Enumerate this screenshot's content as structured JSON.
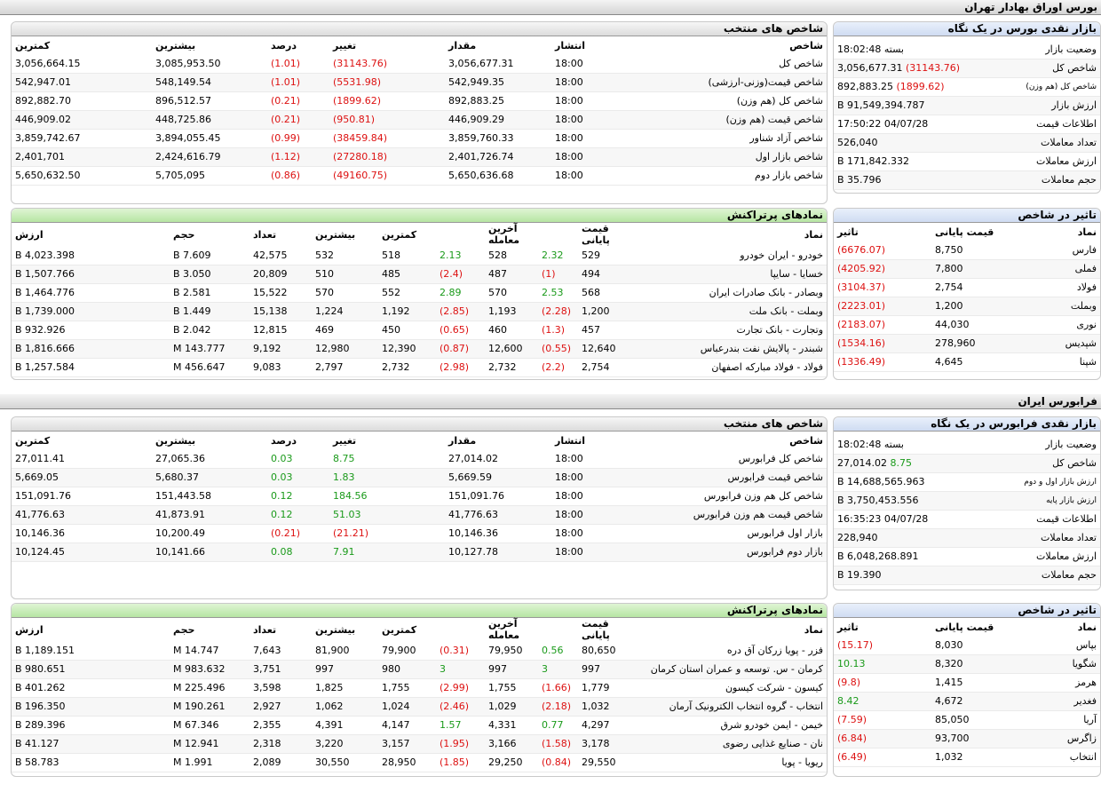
{
  "tse": {
    "title": "بورس اوراق بهادار تهران",
    "glance": {
      "title": "بازار نقدی بورس در یک نگاه",
      "rows": [
        {
          "label": "وضعیت بازار",
          "value": "بسته 18:02:48",
          "change": ""
        },
        {
          "label": "شاخص کل",
          "value": "3,056,677.31",
          "change": "(31143.76)"
        },
        {
          "label": "شاخص کل (هم وزن)",
          "value": "892,883.25",
          "change": "(1899.62)"
        },
        {
          "label": "ارزش بازار",
          "value": "91,549,394.787 B",
          "change": ""
        },
        {
          "label": "اطلاعات قیمت",
          "value": "04/07/28 17:50:22",
          "change": ""
        },
        {
          "label": "تعداد معاملات",
          "value": "526,040",
          "change": ""
        },
        {
          "label": "ارزش معاملات",
          "value": "171,842.332 B",
          "change": ""
        },
        {
          "label": "حجم معاملات",
          "value": "35.796 B",
          "change": ""
        }
      ]
    },
    "indices": {
      "title": "شاخص های منتخب",
      "headers": [
        "شاخص",
        "انتشار",
        "مقدار",
        "تغییر",
        "درصد",
        "بیشترین",
        "کمترین"
      ],
      "rows": [
        [
          "شاخص کل",
          "18:00",
          "3,056,677.31",
          "(31143.76)",
          "(1.01)",
          "3,085,953.50",
          "3,056,664.15"
        ],
        [
          "شاخص قیمت(وزنی-ارزشی)",
          "18:00",
          "542,949.35",
          "(5531.98)",
          "(1.01)",
          "548,149.54",
          "542,947.01"
        ],
        [
          "شاخص کل (هم وزن)",
          "18:00",
          "892,883.25",
          "(1899.62)",
          "(0.21)",
          "896,512.57",
          "892,882.70"
        ],
        [
          "شاخص قیمت (هم وزن)",
          "18:00",
          "446,909.29",
          "(950.81)",
          "(0.21)",
          "448,725.86",
          "446,909.02"
        ],
        [
          "شاخص آزاد شناور",
          "18:00",
          "3,859,760.33",
          "(38459.84)",
          "(0.99)",
          "3,894,055.45",
          "3,859,742.67"
        ],
        [
          "شاخص بازار اول",
          "18:00",
          "2,401,726.74",
          "(27280.18)",
          "(1.12)",
          "2,424,616.79",
          "2,401,701"
        ],
        [
          "شاخص بازار دوم",
          "18:00",
          "5,650,636.68",
          "(49160.75)",
          "(0.86)",
          "5,705,095",
          "5,650,632.50"
        ]
      ]
    },
    "impact": {
      "title": "تاثیر در شاخص",
      "headers": [
        "نماد",
        "قیمت پایانی",
        "تاثیر"
      ],
      "rows": [
        [
          "فارس",
          "8,750",
          "(6676.07)"
        ],
        [
          "فملی",
          "7,800",
          "(4205.92)"
        ],
        [
          "فولاد",
          "2,754",
          "(3104.37)"
        ],
        [
          "وبملت",
          "1,200",
          "(2223.01)"
        ],
        [
          "نوری",
          "44,030",
          "(2183.07)"
        ],
        [
          "شپدیس",
          "278,960",
          "(1534.16)"
        ],
        [
          "شپنا",
          "4,645",
          "(1336.49)"
        ]
      ]
    },
    "active": {
      "title": "نمادهای پرتراکنش",
      "headers": [
        "نماد",
        "قیمت پایانی",
        "",
        "آخرین معامله",
        "",
        "کمترین",
        "بیشترین",
        "تعداد",
        "حجم",
        "ارزش"
      ],
      "rows": [
        [
          "خودرو - ایران خودرو",
          "529",
          "2.32",
          "528",
          "2.13",
          "518",
          "532",
          "42,575",
          "7.609 B",
          "4,023.398 B"
        ],
        [
          "خسایا - سایپا",
          "494",
          "(1)",
          "487",
          "(2.4)",
          "485",
          "510",
          "20,809",
          "3.050 B",
          "1,507.766 B"
        ],
        [
          "وبصادر - بانک صادرات ایران",
          "568",
          "2.53",
          "570",
          "2.89",
          "552",
          "570",
          "15,522",
          "2.581 B",
          "1,464.776 B"
        ],
        [
          "وبملت - بانک ملت",
          "1,200",
          "(2.28)",
          "1,193",
          "(2.85)",
          "1,192",
          "1,224",
          "15,138",
          "1.449 B",
          "1,739.000 B"
        ],
        [
          "وتجارت - بانک تجارت",
          "457",
          "(1.3)",
          "460",
          "(0.65)",
          "450",
          "469",
          "12,815",
          "2.042 B",
          "932.926 B"
        ],
        [
          "شبندر - پالایش نفت بندرعباس",
          "12,640",
          "(0.55)",
          "12,600",
          "(0.87)",
          "12,390",
          "12,980",
          "9,192",
          "143.777 M",
          "1,816.666 B"
        ],
        [
          "فولاد - فولاد مبارکه اصفهان",
          "2,754",
          "(2.2)",
          "2,732",
          "(2.98)",
          "2,732",
          "2,797",
          "9,083",
          "456.647 M",
          "1,257.584 B"
        ]
      ]
    }
  },
  "ifb": {
    "title": "فرابورس ایران",
    "glance": {
      "title": "بازار نقدی فرابورس در یک نگاه",
      "rows": [
        {
          "label": "وضعیت بازار",
          "value": "بسته 18:02:48",
          "change": ""
        },
        {
          "label": "شاخص کل",
          "value": "27,014.02",
          "change": "8.75"
        },
        {
          "label": "ارزش بازار اول و دوم",
          "value": "14,688,565.963 B",
          "change": ""
        },
        {
          "label": "ارزش بازار پایه",
          "value": "3,750,453.556 B",
          "change": ""
        },
        {
          "label": "اطلاعات قیمت",
          "value": "04/07/28 16:35:23",
          "change": ""
        },
        {
          "label": "تعداد معاملات",
          "value": "228,940",
          "change": ""
        },
        {
          "label": "ارزش معاملات",
          "value": "6,048,268.891 B",
          "change": ""
        },
        {
          "label": "حجم معاملات",
          "value": "19.390 B",
          "change": ""
        }
      ]
    },
    "indices": {
      "title": "شاخص های منتخب",
      "headers": [
        "شاخص",
        "انتشار",
        "مقدار",
        "تغییر",
        "درصد",
        "بیشترین",
        "کمترین"
      ],
      "rows": [
        [
          "شاخص کل فرابورس",
          "18:00",
          "27,014.02",
          "8.75",
          "0.03",
          "27,065.36",
          "27,011.41"
        ],
        [
          "شاخص قیمت فرابورس",
          "18:00",
          "5,669.59",
          "1.83",
          "0.03",
          "5,680.37",
          "5,669.05"
        ],
        [
          "شاخص کل هم وزن فرابورس",
          "18:00",
          "151,091.76",
          "184.56",
          "0.12",
          "151,443.58",
          "151,091.76"
        ],
        [
          "شاخص قیمت هم وزن فرابورس",
          "18:00",
          "41,776.63",
          "51.03",
          "0.12",
          "41,873.91",
          "41,776.63"
        ],
        [
          "بازار اول فرابورس",
          "18:00",
          "10,146.36",
          "(21.21)",
          "(0.21)",
          "10,200.49",
          "10,146.36"
        ],
        [
          "بازار دوم فرابورس",
          "18:00",
          "10,127.78",
          "7.91",
          "0.08",
          "10,141.66",
          "10,124.45"
        ]
      ]
    },
    "impact": {
      "title": "تاثیر در شاخص",
      "headers": [
        "نماد",
        "قیمت پایانی",
        "تاثیر"
      ],
      "rows": [
        [
          "بپاس",
          "8,030",
          "(15.17)"
        ],
        [
          "شگویا",
          "8,320",
          "10.13"
        ],
        [
          "هرمز",
          "1,415",
          "(9.8)"
        ],
        [
          "فغدیر",
          "4,672",
          "8.42"
        ],
        [
          "آریا",
          "85,050",
          "(7.59)"
        ],
        [
          "زاگرس",
          "93,700",
          "(6.84)"
        ],
        [
          "انتخاب",
          "1,032",
          "(6.49)"
        ]
      ]
    },
    "active": {
      "title": "نمادهای پرتراکنش",
      "headers": [
        "نماد",
        "قیمت پایانی",
        "",
        "آخرین معامله",
        "",
        "کمترین",
        "بیشترین",
        "تعداد",
        "حجم",
        "ارزش"
      ],
      "rows": [
        [
          "فزر - پویا زرکان آق دره",
          "80,650",
          "0.56",
          "79,950",
          "(0.31)",
          "79,900",
          "81,900",
          "7,643",
          "14.747 M",
          "1,189.151 B"
        ],
        [
          "کرمان - س. توسعه و عمران استان کرمان",
          "997",
          "3",
          "997",
          "3",
          "980",
          "997",
          "3,751",
          "983.632 M",
          "980.651 B"
        ],
        [
          "کیسون - شرکت کیسون",
          "1,779",
          "(1.66)",
          "1,755",
          "(2.99)",
          "1,755",
          "1,825",
          "3,598",
          "225.496 M",
          "401.262 B"
        ],
        [
          "انتخاب - گروه انتخاب الکترونیک آرمان",
          "1,032",
          "(2.18)",
          "1,029",
          "(2.46)",
          "1,024",
          "1,062",
          "2,927",
          "190.261 M",
          "196.350 B"
        ],
        [
          "خیمن - ایمن خودرو شرق",
          "4,297",
          "0.77",
          "4,331",
          "1.57",
          "4,147",
          "4,391",
          "2,355",
          "67.346 M",
          "289.396 B"
        ],
        [
          "نان - صنایع غذایی رضوی",
          "3,178",
          "(1.58)",
          "3,166",
          "(1.95)",
          "3,157",
          "3,220",
          "2,318",
          "12.941 M",
          "41.127 B"
        ],
        [
          "ریویا - پویا",
          "29,550",
          "(0.84)",
          "29,250",
          "(1.85)",
          "28,950",
          "30,550",
          "2,089",
          "1.991 M",
          "58.783 B"
        ]
      ]
    }
  },
  "colors": {
    "negative": "#d11111",
    "positive": "#1a9a1a",
    "header_blue": "#cfdcf2",
    "header_green": "#b6e5a3"
  }
}
